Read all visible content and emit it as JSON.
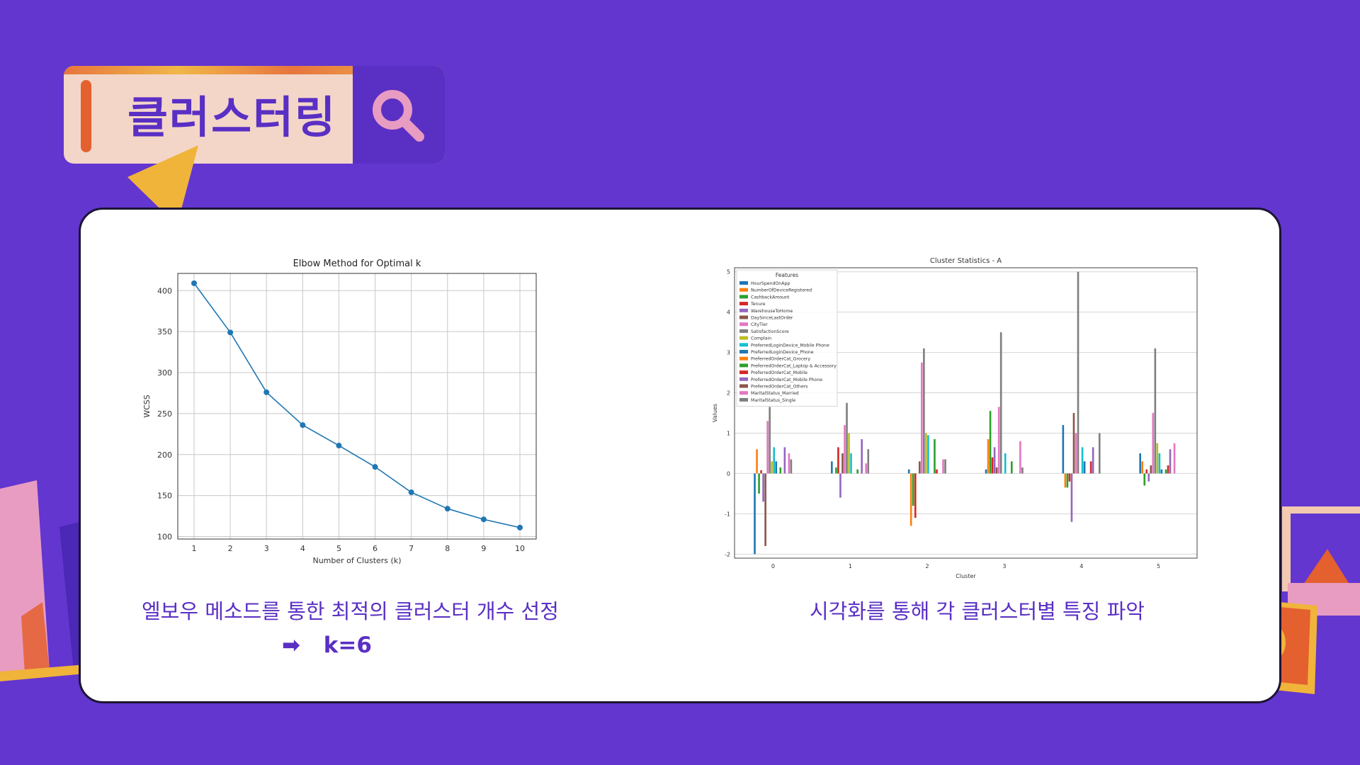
{
  "banner": {
    "title": "클러스터링"
  },
  "captions": {
    "left": "엘보우 메소드를 통한 최적의 클러스터 개수 선정",
    "k_value": "k=6",
    "right": "시각화를 통해 각 클러스터별 특징 파악"
  },
  "colors": {
    "background": "#6236cf",
    "accent_purple": "#5a2fc4",
    "accent_orange": "#e4602f",
    "accent_yellow": "#f0b43a",
    "accent_pink": "#e89cc2"
  },
  "icons": [
    "search-icon",
    "arrow-right-icon",
    "play-icon"
  ],
  "chart_data": [
    {
      "type": "line",
      "title": "Elbow Method for Optimal k",
      "xlabel": "Number of Clusters (k)",
      "ylabel": "WCSS",
      "x": [
        1,
        2,
        3,
        4,
        5,
        6,
        7,
        8,
        9,
        10
      ],
      "y": [
        409,
        349,
        276,
        236,
        211,
        185,
        154,
        134,
        121,
        111
      ],
      "xlim": [
        1,
        10
      ],
      "ylim": [
        100,
        420
      ],
      "yticks": [
        100,
        150,
        200,
        250,
        300,
        350,
        400
      ],
      "grid": true,
      "color": "#1f77b4"
    },
    {
      "type": "bar",
      "title": "Cluster Statistics - A",
      "xlabel": "Cluster",
      "ylabel": "Values",
      "categories": [
        "0",
        "1",
        "2",
        "3",
        "4",
        "5"
      ],
      "ylim": [
        -2.1,
        5.1
      ],
      "yticks": [
        -2,
        -1,
        0,
        1,
        2,
        3,
        4,
        5
      ],
      "legend_title": "Features",
      "legend_position": "top-left",
      "grid": "y",
      "series": [
        {
          "name": "HourSpendOnApp",
          "color": "#1f77b4",
          "values": [
            -2.0,
            0.3,
            0.1,
            0.1,
            1.2,
            0.5
          ]
        },
        {
          "name": "NumberOfDeviceRegistered",
          "color": "#ff7f0e",
          "values": [
            0.6,
            0.0,
            -1.3,
            0.85,
            -0.35,
            0.3
          ]
        },
        {
          "name": "CashbackAmount",
          "color": "#2ca02c",
          "values": [
            -0.5,
            0.15,
            -0.8,
            1.55,
            -0.35,
            -0.3
          ]
        },
        {
          "name": "Tenure",
          "color": "#d62728",
          "values": [
            0.08,
            0.65,
            -1.1,
            0.4,
            -0.2,
            0.1
          ]
        },
        {
          "name": "WarehouseToHome",
          "color": "#9467bd",
          "values": [
            -0.7,
            -0.6,
            0.0,
            0.65,
            -1.2,
            -0.2
          ]
        },
        {
          "name": "DaySinceLastOrder",
          "color": "#8c564b",
          "values": [
            -1.8,
            0.5,
            0.3,
            0.15,
            1.5,
            0.2
          ]
        },
        {
          "name": "CityTier",
          "color": "#e377c2",
          "values": [
            1.3,
            1.2,
            2.75,
            1.65,
            1.0,
            1.5
          ]
        },
        {
          "name": "SatisfactionScore",
          "color": "#7f7f7f",
          "values": [
            1.65,
            1.75,
            3.1,
            3.5,
            5.0,
            3.1
          ]
        },
        {
          "name": "Complain",
          "color": "#bcbd22",
          "values": [
            0.3,
            1.0,
            1.0,
            0.0,
            0.0,
            0.75
          ]
        },
        {
          "name": "PreferredLoginDevice_Mobile Phone",
          "color": "#17becf",
          "values": [
            0.65,
            0.5,
            0.95,
            0.5,
            0.65,
            0.5
          ]
        },
        {
          "name": "PreferredLoginDevice_Phone",
          "color": "#1f77b4",
          "values": [
            0.3,
            0.0,
            0.0,
            0.0,
            0.3,
            0.1
          ]
        },
        {
          "name": "PreferredOrderCat_Grocery",
          "color": "#ff7f0e",
          "values": [
            0.0,
            0.0,
            0.0,
            0.0,
            0.0,
            0.0
          ]
        },
        {
          "name": "PreferredOrderCat_Laptop & Accessory",
          "color": "#2ca02c",
          "values": [
            0.15,
            0.1,
            0.85,
            0.3,
            0.0,
            0.1
          ]
        },
        {
          "name": "PreferredOrderCat_Mobile",
          "color": "#d62728",
          "values": [
            0.0,
            0.0,
            0.1,
            0.0,
            0.3,
            0.2
          ]
        },
        {
          "name": "PreferredOrderCat_Mobile Phone",
          "color": "#9467bd",
          "values": [
            0.65,
            0.85,
            0.0,
            0.0,
            0.65,
            0.6
          ]
        },
        {
          "name": "PreferredOrderCat_Others",
          "color": "#8c564b",
          "values": [
            0.0,
            0.0,
            0.0,
            0.0,
            0.0,
            0.0
          ]
        },
        {
          "name": "MaritalStatus_Married",
          "color": "#e377c2",
          "values": [
            0.5,
            0.25,
            0.35,
            0.8,
            0.0,
            0.75
          ]
        },
        {
          "name": "MaritalStatus_Single",
          "color": "#7f7f7f",
          "values": [
            0.35,
            0.6,
            0.35,
            0.15,
            1.0,
            0.0
          ]
        }
      ]
    }
  ]
}
